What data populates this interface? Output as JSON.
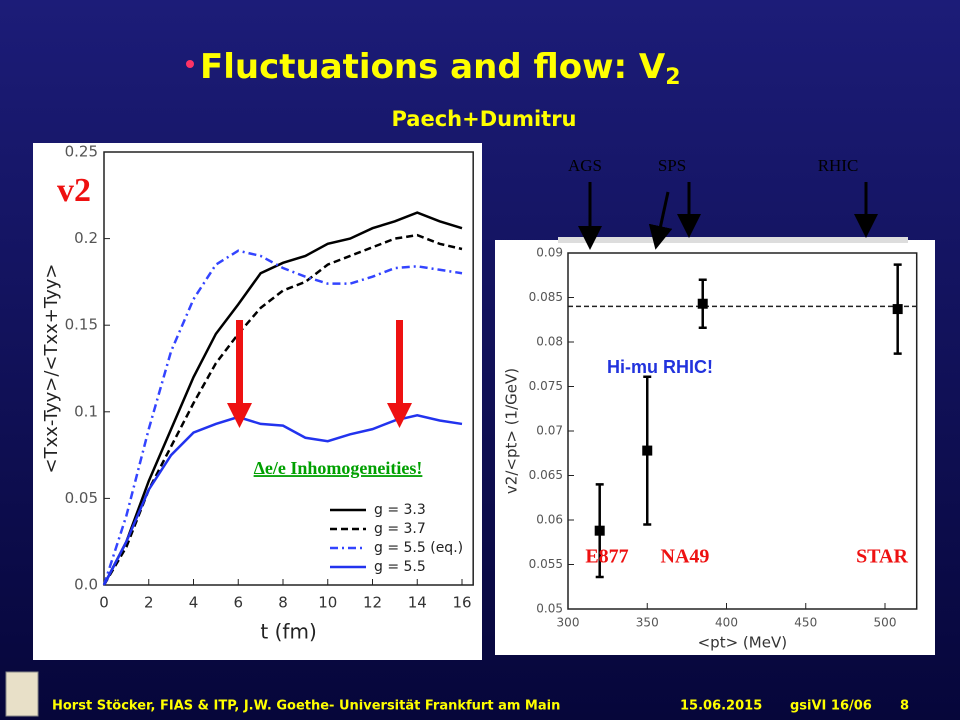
{
  "slide": {
    "title": "Fluctuations and flow: V",
    "title_subscript": "2",
    "subtitle": "Paech+Dumitru",
    "arrow_labels": [
      "AGS",
      "SPS",
      "RHIC"
    ],
    "footer": {
      "author": "Horst Stöcker, FIAS & ITP, J.W. Goethe- Universität Frankfurt am Main",
      "date": "15.06.2015",
      "event": "gsiVI 16/06",
      "page": "8"
    }
  },
  "chart_data": [
    {
      "type": "line",
      "xlabel": "t (fm)",
      "ylabel": "<Txx-Tyy>/<Txx+Tyy>",
      "annotations": [
        "v2",
        "Δe/e Inhomogeneities!"
      ],
      "x": [
        0,
        1,
        2,
        3,
        4,
        5,
        6,
        7,
        8,
        9,
        10,
        11,
        12,
        13,
        14,
        15,
        16
      ],
      "xlim": [
        0,
        16.5
      ],
      "xticks": [
        0,
        2,
        4,
        6,
        8,
        10,
        12,
        14,
        16
      ],
      "ylim": [
        0,
        0.25
      ],
      "yticks": [
        {
          "value": 0,
          "label": "0.0"
        },
        0.05,
        0.1,
        0.15,
        0.2,
        0.25
      ],
      "legend": "lower right",
      "series": [
        {
          "name": "g = 3.3",
          "color": "#000000",
          "dash": "solid",
          "values": [
            0,
            0.025,
            0.06,
            0.09,
            0.12,
            0.145,
            0.162,
            0.18,
            0.186,
            0.19,
            0.197,
            0.2,
            0.206,
            0.21,
            0.215,
            0.21,
            0.206
          ]
        },
        {
          "name": "g = 3.7",
          "color": "#000000",
          "dash": "dashed",
          "values": [
            0,
            0.022,
            0.055,
            0.08,
            0.105,
            0.128,
            0.145,
            0.16,
            0.17,
            0.175,
            0.185,
            0.19,
            0.195,
            0.2,
            0.202,
            0.197,
            0.194
          ]
        },
        {
          "name": "g = 5.5 (eq.)",
          "color": "#3344ff",
          "dash": "dashdot",
          "values": [
            0,
            0.04,
            0.09,
            0.135,
            0.165,
            0.185,
            0.193,
            0.19,
            0.183,
            0.178,
            0.174,
            0.174,
            0.178,
            0.183,
            0.184,
            0.182,
            0.18
          ]
        },
        {
          "name": "g = 5.5",
          "color": "#2233ee",
          "dash": "solid",
          "values": [
            0,
            0.025,
            0.055,
            0.075,
            0.088,
            0.093,
            0.097,
            0.093,
            0.092,
            0.085,
            0.083,
            0.087,
            0.09,
            0.095,
            0.098,
            0.095,
            0.093
          ]
        }
      ]
    },
    {
      "type": "scatter",
      "xlabel": "<pt> (MeV)",
      "ylabel": "v2/<pt> (1/GeV)",
      "annotations": [
        "Hi-mu RHIC!"
      ],
      "point_labels": [
        "E877",
        "NA49",
        null,
        "STAR"
      ],
      "x": [
        320,
        350,
        385,
        508
      ],
      "values": [
        0.0588,
        0.0678,
        0.0843,
        0.0837
      ],
      "errors": [
        0.0052,
        0.0083,
        0.0027,
        0.005
      ],
      "color": "#000000",
      "reference_line": 0.084,
      "xlim": [
        300,
        520
      ],
      "xticks": [
        300,
        350,
        400,
        450,
        500
      ],
      "ylim": [
        0.05,
        0.09
      ],
      "yticks": [
        0.05,
        0.055,
        0.06,
        0.065,
        0.07,
        0.075,
        0.08,
        0.085,
        0.09
      ]
    }
  ]
}
